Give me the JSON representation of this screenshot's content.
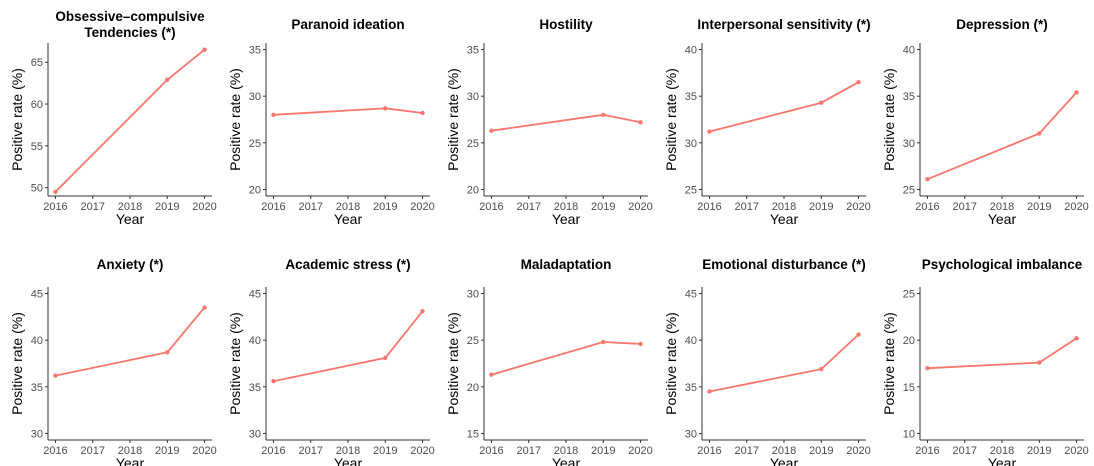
{
  "chart_data": [
    {
      "type": "line",
      "title": [
        "Obsessive–compulsive",
        "Tendencies (*)"
      ],
      "xlabel": "Year",
      "ylabel": "Positive rate (%)",
      "x": [
        2016,
        2019,
        2020
      ],
      "x_ticks": [
        2016,
        2017,
        2018,
        2019,
        2020
      ],
      "values": [
        49.5,
        62.9,
        66.5
      ],
      "ylim": [
        49,
        67.3
      ],
      "y_ticks": [
        50,
        55,
        60,
        65
      ]
    },
    {
      "type": "line",
      "title": [
        "Paranoid ideation"
      ],
      "xlabel": "Year",
      "ylabel": "Positive rate (%)",
      "x": [
        2016,
        2019,
        2020
      ],
      "x_ticks": [
        2016,
        2017,
        2018,
        2019,
        2020
      ],
      "values": [
        28.0,
        28.7,
        28.2
      ],
      "ylim": [
        19.3,
        35.7
      ],
      "y_ticks": [
        20,
        25,
        30,
        35
      ]
    },
    {
      "type": "line",
      "title": [
        "Hostility"
      ],
      "xlabel": "Year",
      "ylabel": "Positive rate (%)",
      "x": [
        2016,
        2019,
        2020
      ],
      "x_ticks": [
        2016,
        2017,
        2018,
        2019,
        2020
      ],
      "values": [
        26.3,
        28.0,
        27.2
      ],
      "ylim": [
        19.3,
        35.7
      ],
      "y_ticks": [
        20,
        25,
        30,
        35
      ]
    },
    {
      "type": "line",
      "title": [
        "Interpersonal sensitivity (*)"
      ],
      "xlabel": "Year",
      "ylabel": "Positive rate (%)",
      "x": [
        2016,
        2019,
        2020
      ],
      "x_ticks": [
        2016,
        2017,
        2018,
        2019,
        2020
      ],
      "values": [
        31.2,
        34.3,
        36.5
      ],
      "ylim": [
        24.3,
        40.7
      ],
      "y_ticks": [
        25,
        30,
        35,
        40
      ]
    },
    {
      "type": "line",
      "title": [
        "Depression (*)"
      ],
      "xlabel": "Year",
      "ylabel": "Positive rate (%)",
      "x": [
        2016,
        2019,
        2020
      ],
      "x_ticks": [
        2016,
        2017,
        2018,
        2019,
        2020
      ],
      "values": [
        26.1,
        31.0,
        35.4
      ],
      "ylim": [
        24.3,
        40.7
      ],
      "y_ticks": [
        25,
        30,
        35,
        40
      ]
    },
    {
      "type": "line",
      "title": [
        "Anxiety (*)"
      ],
      "xlabel": "Year",
      "ylabel": "Positive rate (%)",
      "x": [
        2016,
        2019,
        2020
      ],
      "x_ticks": [
        2016,
        2017,
        2018,
        2019,
        2020
      ],
      "values": [
        36.2,
        38.7,
        43.5
      ],
      "ylim": [
        29.3,
        45.7
      ],
      "y_ticks": [
        30,
        35,
        40,
        45
      ]
    },
    {
      "type": "line",
      "title": [
        "Academic stress (*)"
      ],
      "xlabel": "Year",
      "ylabel": "Positive rate (%)",
      "x": [
        2016,
        2019,
        2020
      ],
      "x_ticks": [
        2016,
        2017,
        2018,
        2019,
        2020
      ],
      "values": [
        35.6,
        38.1,
        43.1
      ],
      "ylim": [
        29.3,
        45.7
      ],
      "y_ticks": [
        30,
        35,
        40,
        45
      ]
    },
    {
      "type": "line",
      "title": [
        "Maladaptation"
      ],
      "xlabel": "Year",
      "ylabel": "Positive rate (%)",
      "x": [
        2016,
        2019,
        2020
      ],
      "x_ticks": [
        2016,
        2017,
        2018,
        2019,
        2020
      ],
      "values": [
        21.3,
        24.8,
        24.6
      ],
      "ylim": [
        14.3,
        30.7
      ],
      "y_ticks": [
        15,
        20,
        25,
        30
      ]
    },
    {
      "type": "line",
      "title": [
        "Emotional disturbance (*)"
      ],
      "xlabel": "Year",
      "ylabel": "Positive rate (%)",
      "x": [
        2016,
        2019,
        2020
      ],
      "x_ticks": [
        2016,
        2017,
        2018,
        2019,
        2020
      ],
      "values": [
        34.5,
        36.9,
        40.6
      ],
      "ylim": [
        29.3,
        45.7
      ],
      "y_ticks": [
        30,
        35,
        40,
        45
      ]
    },
    {
      "type": "line",
      "title": [
        "Psychological imbalance"
      ],
      "xlabel": "Year",
      "ylabel": "Positive rate (%)",
      "x": [
        2016,
        2019,
        2020
      ],
      "x_ticks": [
        2016,
        2017,
        2018,
        2019,
        2020
      ],
      "values": [
        17.0,
        17.6,
        20.2
      ],
      "ylim": [
        9.3,
        25.7
      ],
      "y_ticks": [
        10,
        15,
        20,
        25
      ]
    }
  ],
  "colors": {
    "line": "#F8766D",
    "axis": "#333333",
    "tick_text": "#4d4d4d"
  }
}
